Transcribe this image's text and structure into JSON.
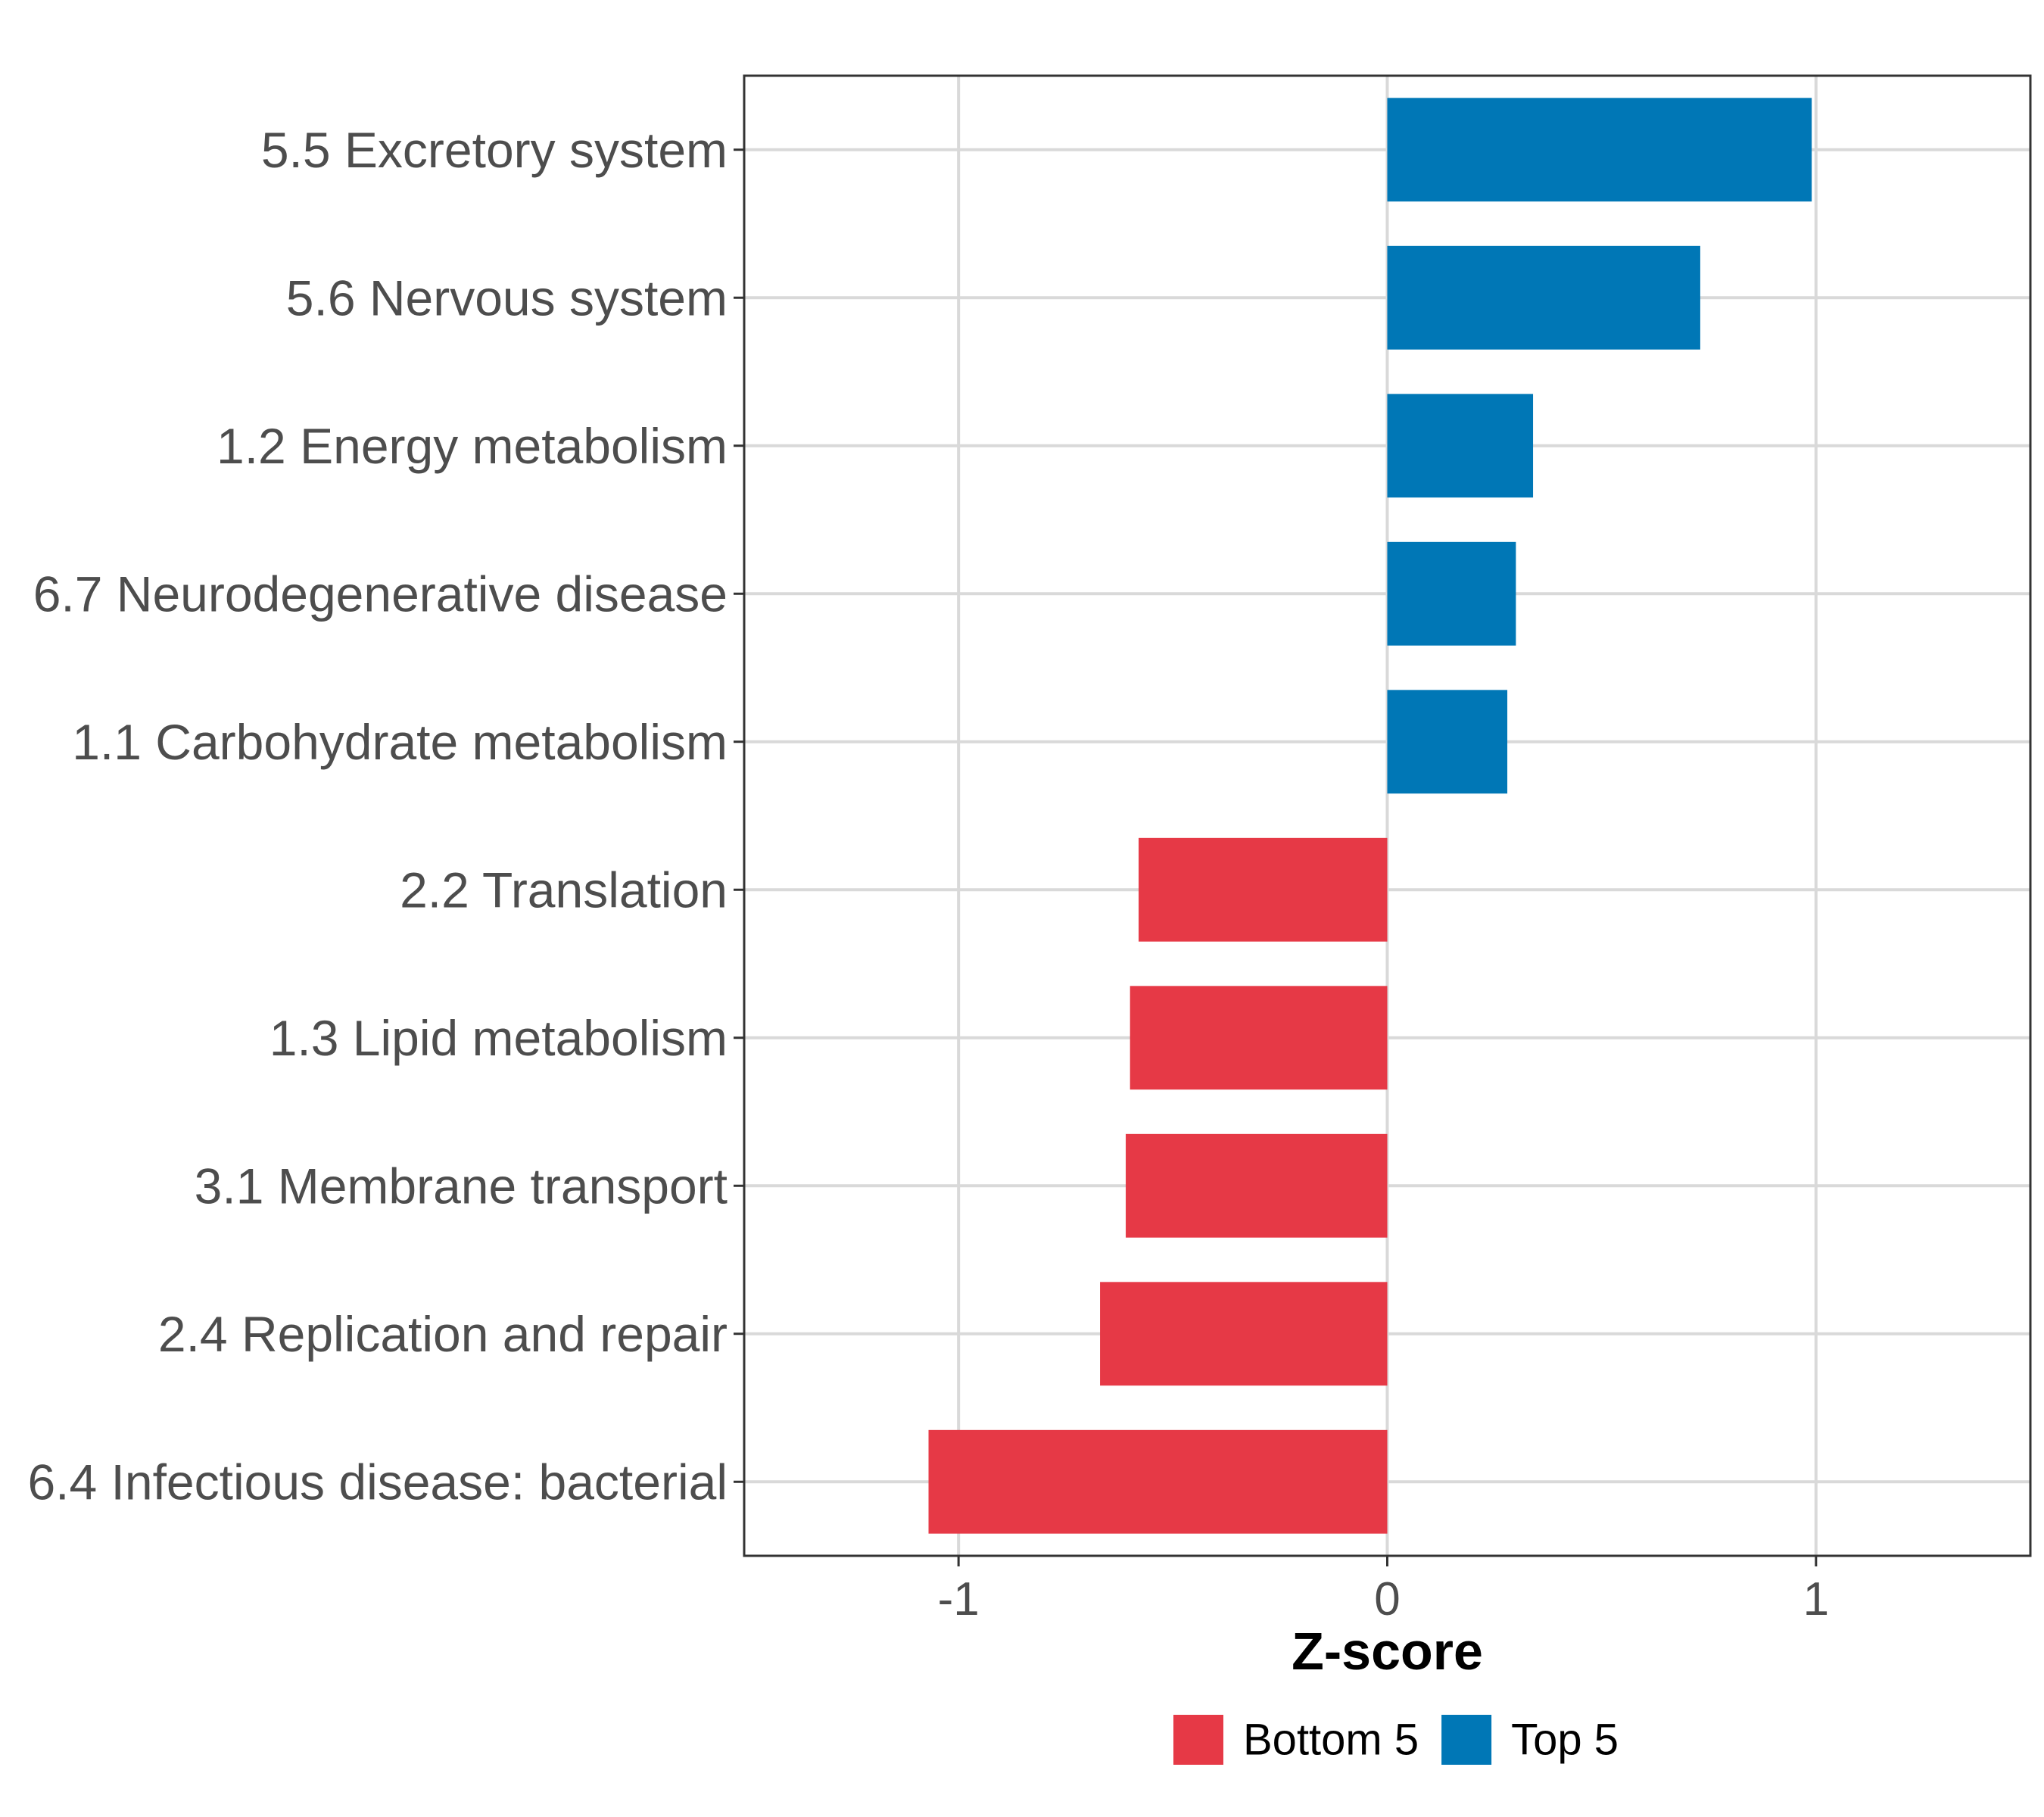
{
  "chart_data": {
    "type": "bar",
    "orientation": "horizontal",
    "title": "",
    "xlabel": "Z-score",
    "ylabel": "",
    "xlim": [
      -1.5,
      1.5
    ],
    "xticks": [
      -1,
      0,
      1
    ],
    "xtick_labels": [
      "-1",
      "0",
      "1"
    ],
    "grid": true,
    "legend_position": "bottom",
    "categories": [
      "5.5 Excretory system",
      "5.6 Nervous system",
      "1.2 Energy metabolism",
      "6.7 Neurodegenerative disease",
      "1.1 Carbohydrate metabolism",
      "2.2 Translation",
      "1.3 Lipid metabolism",
      "3.1 Membrane transport",
      "2.4 Replication and repair",
      "6.4 Infectious disease: bacterial"
    ],
    "values": [
      0.99,
      0.73,
      0.34,
      0.3,
      0.28,
      -0.58,
      -0.6,
      -0.61,
      -0.67,
      -1.07
    ],
    "groups": [
      "Top 5",
      "Top 5",
      "Top 5",
      "Top 5",
      "Top 5",
      "Bottom 5",
      "Bottom 5",
      "Bottom 5",
      "Bottom 5",
      "Bottom 5"
    ],
    "legend": [
      {
        "label": "Bottom 5",
        "color": "#e63946"
      },
      {
        "label": "Top 5",
        "color": "#0077b6"
      }
    ]
  }
}
